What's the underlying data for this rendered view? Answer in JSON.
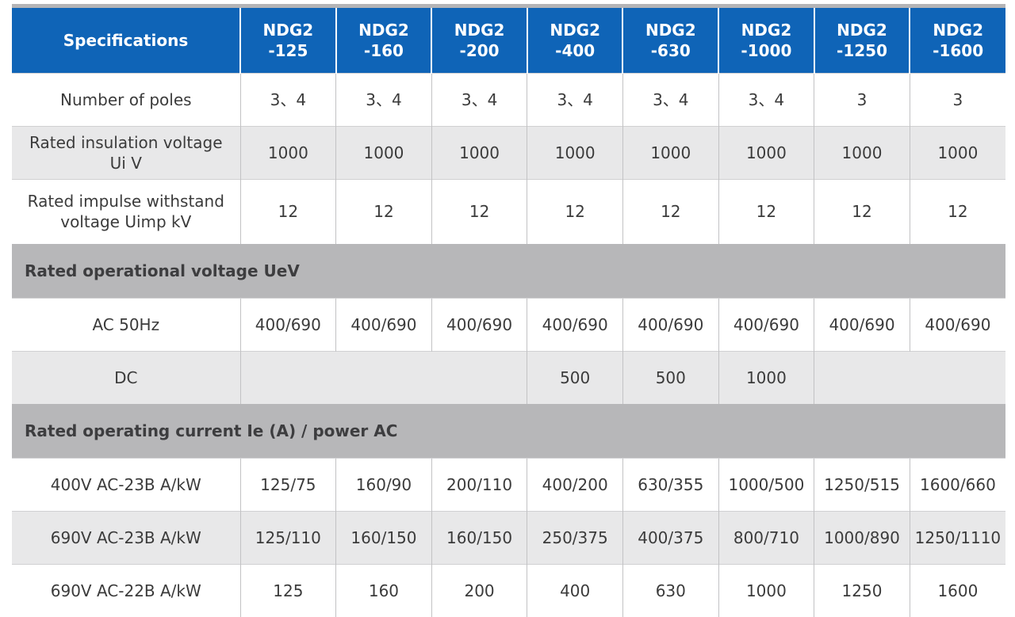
{
  "table": {
    "header": {
      "spec_label": "Specifications",
      "models": [
        {
          "line1": "NDG2",
          "line2": "-125"
        },
        {
          "line1": "NDG2",
          "line2": "-160"
        },
        {
          "line1": "NDG2",
          "line2": "-200"
        },
        {
          "line1": "NDG2",
          "line2": "-400"
        },
        {
          "line1": "NDG2",
          "line2": "-630"
        },
        {
          "line1": "NDG2",
          "line2": "-1000"
        },
        {
          "line1": "NDG2",
          "line2": "-1250"
        },
        {
          "line1": "NDG2",
          "line2": "-1600"
        }
      ]
    },
    "rows": [
      {
        "label_line1": "Number of poles",
        "label_line2": "",
        "values": [
          "3、4",
          "3、4",
          "3、4",
          "3、4",
          "3、4",
          "3、4",
          "3",
          "3"
        ]
      },
      {
        "label_line1": "Rated insulation voltage",
        "label_line2": "Ui  V",
        "values": [
          "1000",
          "1000",
          "1000",
          "1000",
          "1000",
          "1000",
          "1000",
          "1000"
        ]
      },
      {
        "label_line1": "Rated impulse withstand",
        "label_line2": "voltage Uimp kV",
        "values": [
          "12",
          "12",
          "12",
          "12",
          "12",
          "12",
          "12",
          "12"
        ]
      }
    ],
    "sections": [
      {
        "title": "Rated operational voltage UeV",
        "rows": [
          {
            "label": "AC 50Hz",
            "values": [
              "400/690",
              "400/690",
              "400/690",
              "400/690",
              "400/690",
              "400/690",
              "400/690",
              "400/690"
            ]
          },
          {
            "label": "DC",
            "values": [
              "",
              "",
              "",
              "500",
              "500",
              "1000",
              "",
              ""
            ]
          }
        ]
      },
      {
        "title": "Rated operating current Ie (A) / power AC",
        "rows": [
          {
            "label": "400V AC-23B A/kW",
            "values": [
              "125/75",
              "160/90",
              "200/110",
              "400/200",
              "630/355",
              "1000/500",
              "1250/515",
              "1600/660"
            ]
          },
          {
            "label": "690V AC-23B A/kW",
            "values": [
              "125/110",
              "160/150",
              "160/150",
              "250/375",
              "400/375",
              "800/710",
              "1000/890",
              "1250/1110"
            ]
          },
          {
            "label": "690V AC-22B A/kW",
            "values": [
              "125",
              "160",
              "200",
              "400",
              "630",
              "1000",
              "1250",
              "1600"
            ]
          }
        ]
      }
    ]
  }
}
